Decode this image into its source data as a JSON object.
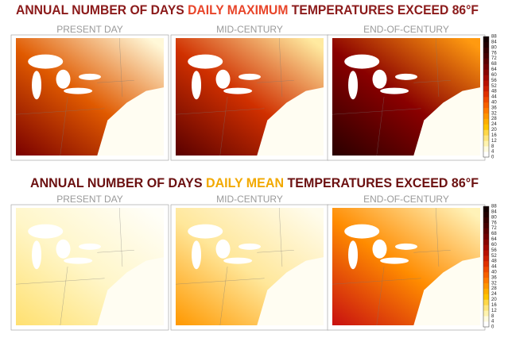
{
  "rows": [
    {
      "title": [
        {
          "text": "ANNUAL NUMBER OF DAYS ",
          "color": "#8b1a1a"
        },
        {
          "text": "DAILY MAXIMUM",
          "color": "#e8452a"
        },
        {
          "text": " TEMPERATURES EXCEED 86°F",
          "color": "#8b1a1a"
        }
      ],
      "panels": [
        "PRESENT DAY",
        "MID-CENTURY",
        "END-OF-CENTURY"
      ],
      "colorbar_ticks": [
        88,
        84,
        80,
        76,
        72,
        68,
        64,
        60,
        56,
        52,
        48,
        44,
        40,
        36,
        32,
        28,
        24,
        20,
        16,
        12,
        8,
        4,
        0
      ]
    },
    {
      "title": [
        {
          "text": "ANNUAL NUMBER OF DAYS ",
          "color": "#6b1010"
        },
        {
          "text": "DAILY MEAN",
          "color": "#f2a900"
        },
        {
          "text": " TEMPERATURES EXCEED 86°F",
          "color": "#6b1010"
        }
      ],
      "panels": [
        "PRESENT DAY",
        "MID-CENTURY",
        "END-OF-CENTURY"
      ],
      "colorbar_ticks": [
        88,
        84,
        80,
        76,
        72,
        68,
        64,
        60,
        56,
        52,
        48,
        44,
        40,
        36,
        32,
        28,
        24,
        20,
        16,
        12,
        8,
        4,
        0
      ]
    }
  ]
}
